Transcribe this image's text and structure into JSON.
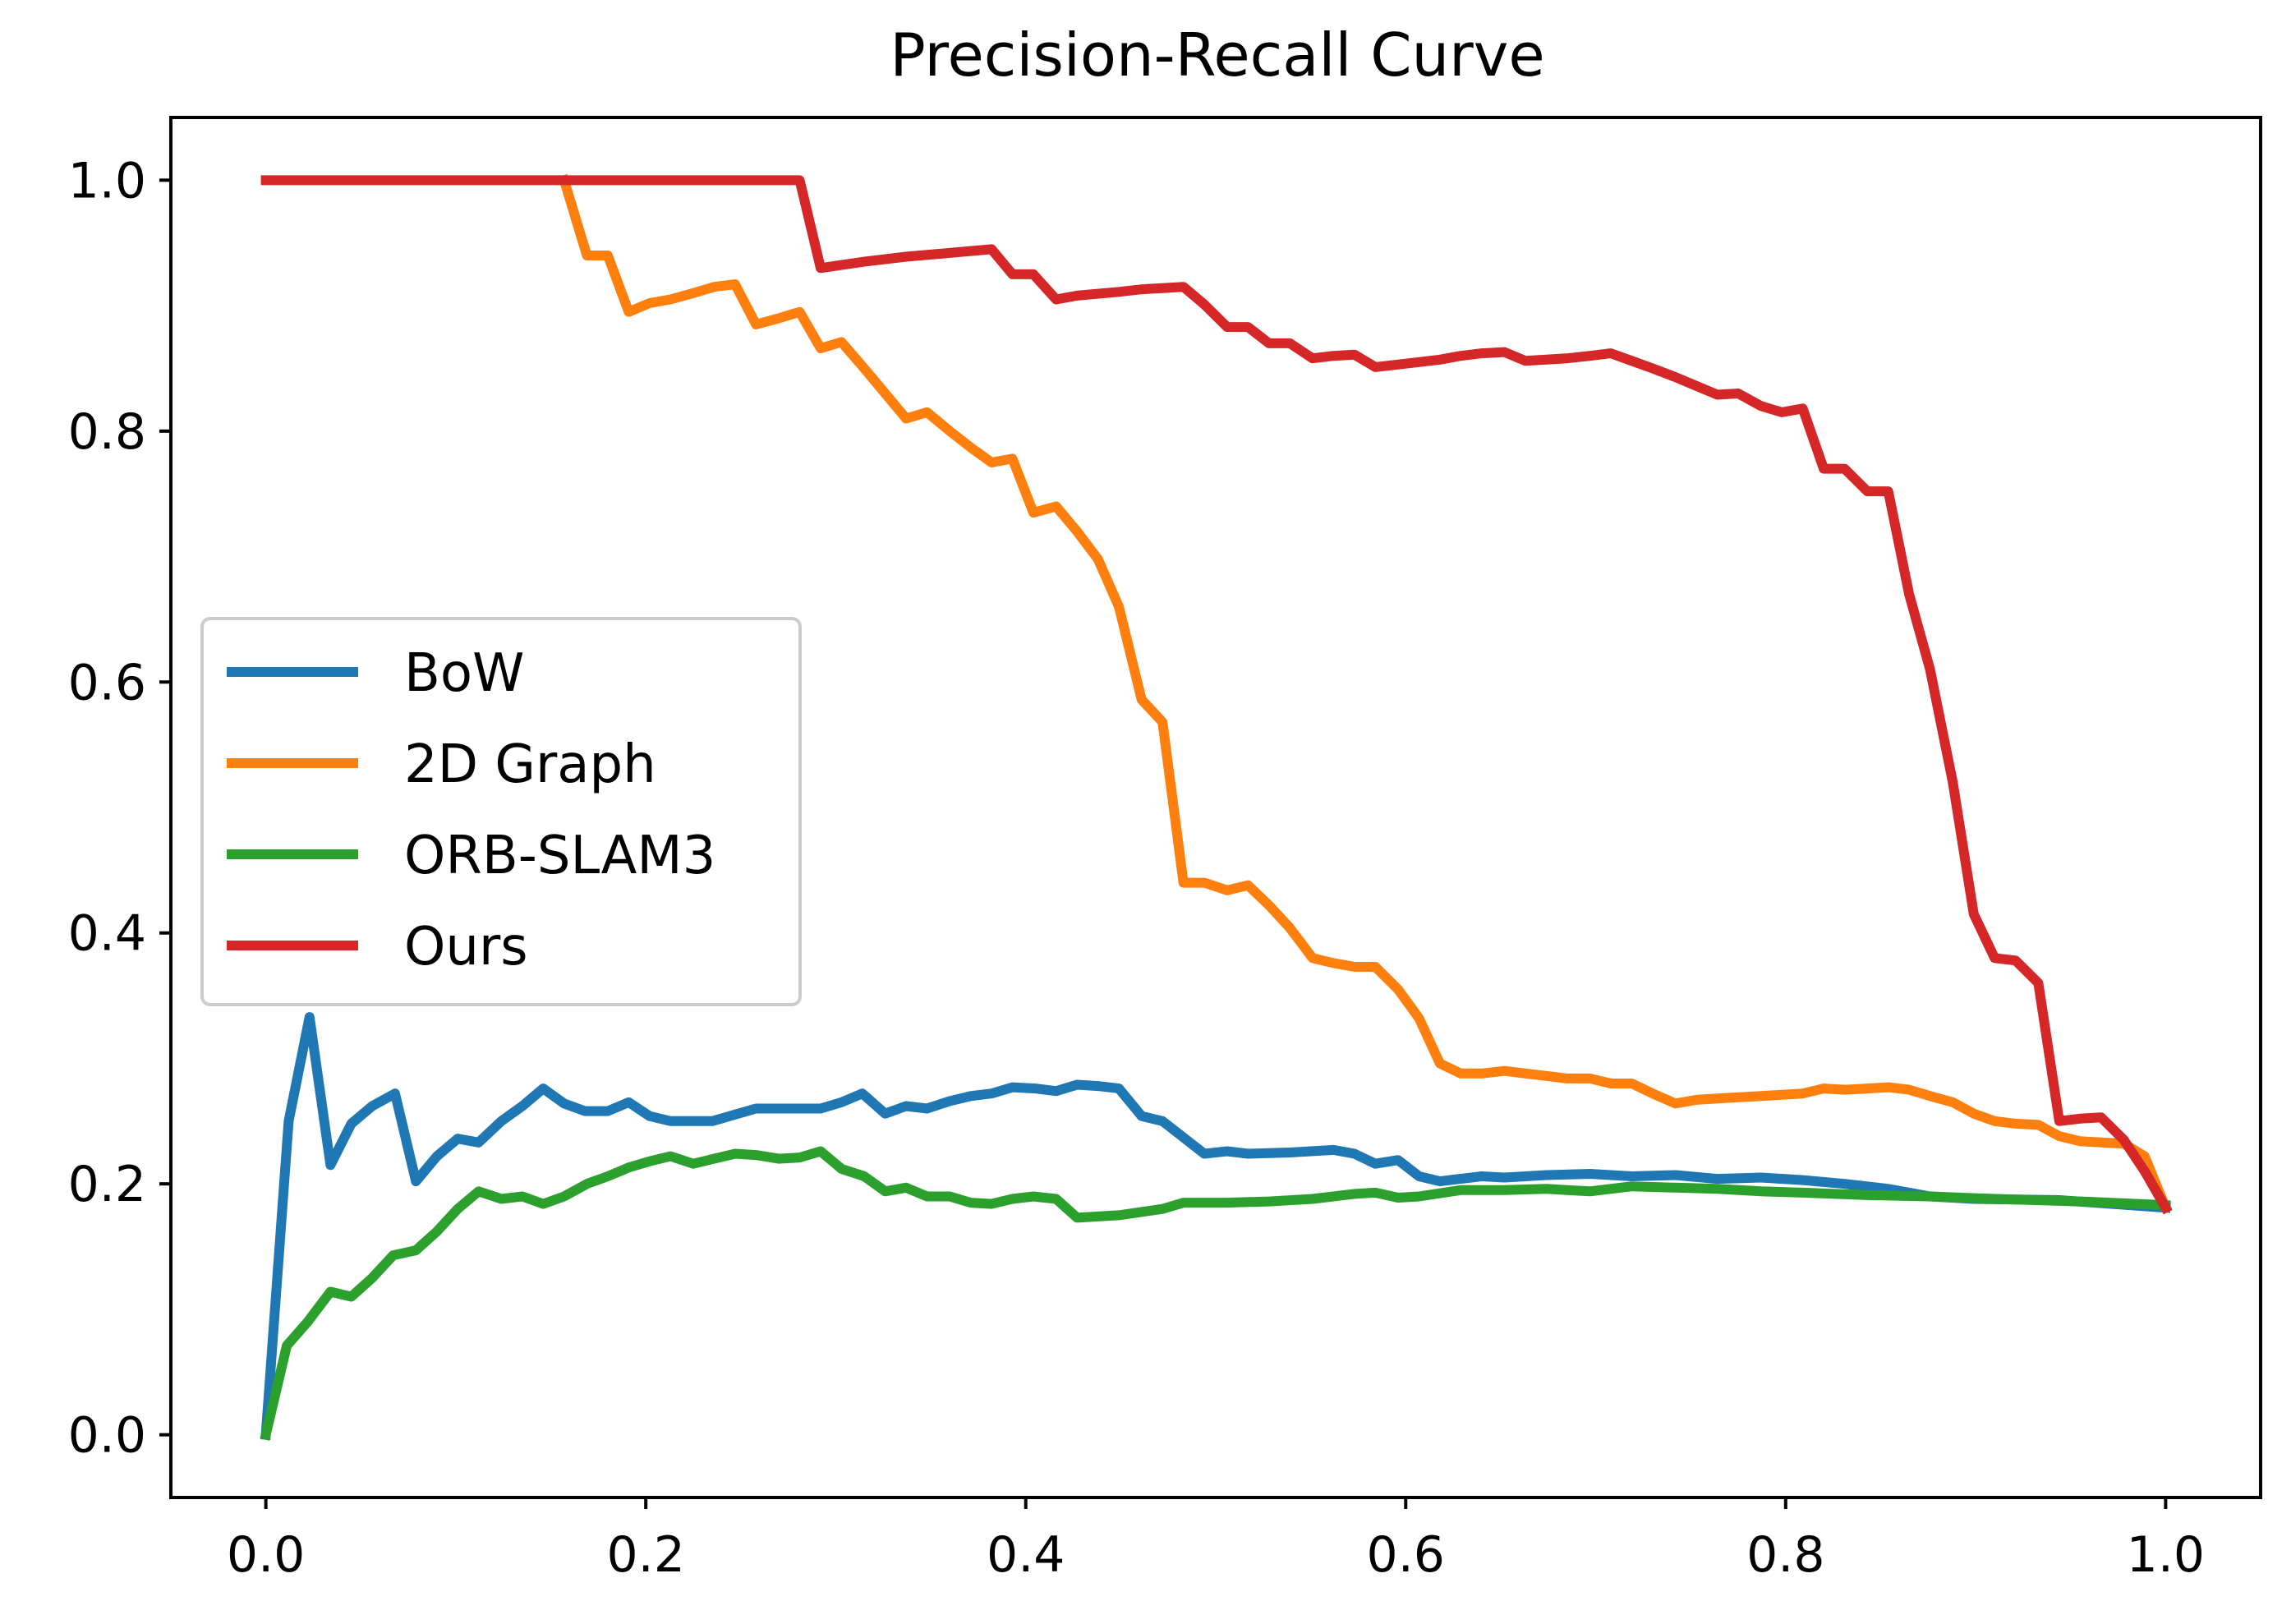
{
  "chart_data": {
    "type": "line",
    "title": "Precision-Recall Curve",
    "xlabel": "",
    "ylabel": "",
    "xlim": [
      -0.05,
      1.05
    ],
    "ylim": [
      -0.05,
      1.05
    ],
    "xticks": [
      "0.0",
      "0.2",
      "0.4",
      "0.6",
      "0.8",
      "1.0"
    ],
    "yticks": [
      "0.0",
      "0.2",
      "0.4",
      "0.6",
      "0.8",
      "1.0"
    ],
    "xtick_values": [
      0.0,
      0.2,
      0.4,
      0.6,
      0.8,
      1.0
    ],
    "ytick_values": [
      0.0,
      0.2,
      0.4,
      0.6,
      0.8,
      1.0
    ],
    "grid": false,
    "legend_position": "center-left",
    "series": [
      {
        "name": "BoW",
        "color": "#1f77b4",
        "points": [
          [
            0.0,
            0.0
          ],
          [
            0.012,
            0.25
          ],
          [
            0.023,
            0.333
          ],
          [
            0.034,
            0.215
          ],
          [
            0.045,
            0.248
          ],
          [
            0.056,
            0.262
          ],
          [
            0.068,
            0.272
          ],
          [
            0.079,
            0.202
          ],
          [
            0.09,
            0.222
          ],
          [
            0.101,
            0.236
          ],
          [
            0.112,
            0.233
          ],
          [
            0.124,
            0.25
          ],
          [
            0.135,
            0.262
          ],
          [
            0.146,
            0.276
          ],
          [
            0.157,
            0.264
          ],
          [
            0.168,
            0.258
          ],
          [
            0.18,
            0.258
          ],
          [
            0.191,
            0.265
          ],
          [
            0.202,
            0.254
          ],
          [
            0.213,
            0.25
          ],
          [
            0.235,
            0.25
          ],
          [
            0.258,
            0.26
          ],
          [
            0.281,
            0.26
          ],
          [
            0.292,
            0.26
          ],
          [
            0.303,
            0.265
          ],
          [
            0.314,
            0.272
          ],
          [
            0.326,
            0.256
          ],
          [
            0.337,
            0.262
          ],
          [
            0.348,
            0.26
          ],
          [
            0.36,
            0.266
          ],
          [
            0.371,
            0.27
          ],
          [
            0.382,
            0.272
          ],
          [
            0.393,
            0.277
          ],
          [
            0.405,
            0.276
          ],
          [
            0.416,
            0.274
          ],
          [
            0.427,
            0.279
          ],
          [
            0.438,
            0.278
          ],
          [
            0.449,
            0.276
          ],
          [
            0.461,
            0.254
          ],
          [
            0.472,
            0.25
          ],
          [
            0.483,
            0.237
          ],
          [
            0.494,
            0.224
          ],
          [
            0.506,
            0.226
          ],
          [
            0.517,
            0.224
          ],
          [
            0.539,
            0.225
          ],
          [
            0.562,
            0.227
          ],
          [
            0.573,
            0.224
          ],
          [
            0.584,
            0.216
          ],
          [
            0.596,
            0.219
          ],
          [
            0.607,
            0.206
          ],
          [
            0.618,
            0.202
          ],
          [
            0.64,
            0.206
          ],
          [
            0.652,
            0.205
          ],
          [
            0.674,
            0.207
          ],
          [
            0.697,
            0.208
          ],
          [
            0.719,
            0.206
          ],
          [
            0.742,
            0.207
          ],
          [
            0.764,
            0.204
          ],
          [
            0.787,
            0.205
          ],
          [
            0.809,
            0.203
          ],
          [
            0.831,
            0.2
          ],
          [
            0.854,
            0.196
          ],
          [
            0.876,
            0.19
          ],
          [
            0.899,
            0.188
          ],
          [
            0.944,
            0.187
          ],
          [
            1.0,
            0.181
          ]
        ]
      },
      {
        "name": "2D Graph",
        "color": "#ff7f0e",
        "points": [
          [
            0.157,
            1.0
          ],
          [
            0.169,
            0.94
          ],
          [
            0.18,
            0.94
          ],
          [
            0.191,
            0.895
          ],
          [
            0.202,
            0.902
          ],
          [
            0.213,
            0.905
          ],
          [
            0.225,
            0.91
          ],
          [
            0.236,
            0.915
          ],
          [
            0.247,
            0.917
          ],
          [
            0.258,
            0.885
          ],
          [
            0.27,
            0.89
          ],
          [
            0.281,
            0.895
          ],
          [
            0.292,
            0.866
          ],
          [
            0.303,
            0.871
          ],
          [
            0.315,
            0.85
          ],
          [
            0.326,
            0.83
          ],
          [
            0.337,
            0.81
          ],
          [
            0.348,
            0.815
          ],
          [
            0.36,
            0.8
          ],
          [
            0.371,
            0.787
          ],
          [
            0.382,
            0.775
          ],
          [
            0.393,
            0.778
          ],
          [
            0.404,
            0.735
          ],
          [
            0.416,
            0.74
          ],
          [
            0.427,
            0.72
          ],
          [
            0.438,
            0.698
          ],
          [
            0.449,
            0.66
          ],
          [
            0.461,
            0.586
          ],
          [
            0.472,
            0.568
          ],
          [
            0.483,
            0.44
          ],
          [
            0.494,
            0.44
          ],
          [
            0.506,
            0.434
          ],
          [
            0.517,
            0.438
          ],
          [
            0.528,
            0.422
          ],
          [
            0.539,
            0.404
          ],
          [
            0.551,
            0.38
          ],
          [
            0.562,
            0.376
          ],
          [
            0.573,
            0.373
          ],
          [
            0.584,
            0.373
          ],
          [
            0.596,
            0.355
          ],
          [
            0.607,
            0.332
          ],
          [
            0.618,
            0.296
          ],
          [
            0.629,
            0.288
          ],
          [
            0.64,
            0.288
          ],
          [
            0.652,
            0.29
          ],
          [
            0.663,
            0.288
          ],
          [
            0.674,
            0.286
          ],
          [
            0.685,
            0.284
          ],
          [
            0.697,
            0.284
          ],
          [
            0.708,
            0.28
          ],
          [
            0.719,
            0.28
          ],
          [
            0.73,
            0.272
          ],
          [
            0.742,
            0.264
          ],
          [
            0.753,
            0.267
          ],
          [
            0.764,
            0.268
          ],
          [
            0.787,
            0.27
          ],
          [
            0.809,
            0.272
          ],
          [
            0.82,
            0.276
          ],
          [
            0.831,
            0.275
          ],
          [
            0.843,
            0.276
          ],
          [
            0.854,
            0.277
          ],
          [
            0.865,
            0.275
          ],
          [
            0.876,
            0.27
          ],
          [
            0.888,
            0.265
          ],
          [
            0.899,
            0.256
          ],
          [
            0.91,
            0.25
          ],
          [
            0.921,
            0.248
          ],
          [
            0.933,
            0.247
          ],
          [
            0.944,
            0.238
          ],
          [
            0.955,
            0.234
          ],
          [
            0.978,
            0.232
          ],
          [
            0.989,
            0.222
          ],
          [
            1.0,
            0.181
          ]
        ]
      },
      {
        "name": "ORB-SLAM3",
        "color": "#2ca02c",
        "points": [
          [
            0.0,
            0.0
          ],
          [
            0.011,
            0.071
          ],
          [
            0.022,
            0.09
          ],
          [
            0.034,
            0.114
          ],
          [
            0.045,
            0.11
          ],
          [
            0.056,
            0.125
          ],
          [
            0.067,
            0.143
          ],
          [
            0.079,
            0.147
          ],
          [
            0.09,
            0.162
          ],
          [
            0.101,
            0.18
          ],
          [
            0.112,
            0.194
          ],
          [
            0.124,
            0.188
          ],
          [
            0.135,
            0.19
          ],
          [
            0.146,
            0.184
          ],
          [
            0.157,
            0.19
          ],
          [
            0.169,
            0.2
          ],
          [
            0.18,
            0.206
          ],
          [
            0.191,
            0.213
          ],
          [
            0.202,
            0.218
          ],
          [
            0.213,
            0.222
          ],
          [
            0.225,
            0.216
          ],
          [
            0.236,
            0.22
          ],
          [
            0.247,
            0.224
          ],
          [
            0.258,
            0.223
          ],
          [
            0.27,
            0.22
          ],
          [
            0.281,
            0.221
          ],
          [
            0.292,
            0.226
          ],
          [
            0.303,
            0.212
          ],
          [
            0.315,
            0.206
          ],
          [
            0.326,
            0.194
          ],
          [
            0.337,
            0.197
          ],
          [
            0.348,
            0.19
          ],
          [
            0.36,
            0.19
          ],
          [
            0.371,
            0.185
          ],
          [
            0.382,
            0.184
          ],
          [
            0.393,
            0.188
          ],
          [
            0.404,
            0.19
          ],
          [
            0.416,
            0.188
          ],
          [
            0.427,
            0.173
          ],
          [
            0.449,
            0.175
          ],
          [
            0.472,
            0.18
          ],
          [
            0.483,
            0.185
          ],
          [
            0.506,
            0.185
          ],
          [
            0.528,
            0.186
          ],
          [
            0.551,
            0.188
          ],
          [
            0.573,
            0.192
          ],
          [
            0.584,
            0.193
          ],
          [
            0.596,
            0.189
          ],
          [
            0.607,
            0.19
          ],
          [
            0.629,
            0.195
          ],
          [
            0.652,
            0.195
          ],
          [
            0.674,
            0.196
          ],
          [
            0.697,
            0.194
          ],
          [
            0.719,
            0.198
          ],
          [
            0.742,
            0.197
          ],
          [
            0.764,
            0.196
          ],
          [
            0.787,
            0.194
          ],
          [
            0.809,
            0.193
          ],
          [
            0.843,
            0.191
          ],
          [
            0.876,
            0.19
          ],
          [
            0.91,
            0.188
          ],
          [
            0.955,
            0.186
          ],
          [
            1.0,
            0.183
          ]
        ]
      },
      {
        "name": "Ours",
        "color": "#d62728",
        "points": [
          [
            0.0,
            1.0
          ],
          [
            0.281,
            1.0
          ],
          [
            0.292,
            0.93
          ],
          [
            0.315,
            0.935
          ],
          [
            0.337,
            0.939
          ],
          [
            0.36,
            0.942
          ],
          [
            0.382,
            0.945
          ],
          [
            0.393,
            0.925
          ],
          [
            0.404,
            0.925
          ],
          [
            0.416,
            0.905
          ],
          [
            0.427,
            0.908
          ],
          [
            0.449,
            0.911
          ],
          [
            0.461,
            0.913
          ],
          [
            0.472,
            0.914
          ],
          [
            0.483,
            0.915
          ],
          [
            0.494,
            0.901
          ],
          [
            0.506,
            0.883
          ],
          [
            0.517,
            0.883
          ],
          [
            0.528,
            0.87
          ],
          [
            0.539,
            0.87
          ],
          [
            0.551,
            0.858
          ],
          [
            0.562,
            0.86
          ],
          [
            0.573,
            0.861
          ],
          [
            0.584,
            0.851
          ],
          [
            0.607,
            0.855
          ],
          [
            0.618,
            0.857
          ],
          [
            0.629,
            0.86
          ],
          [
            0.64,
            0.862
          ],
          [
            0.652,
            0.863
          ],
          [
            0.663,
            0.856
          ],
          [
            0.674,
            0.857
          ],
          [
            0.685,
            0.858
          ],
          [
            0.697,
            0.86
          ],
          [
            0.708,
            0.862
          ],
          [
            0.719,
            0.856
          ],
          [
            0.73,
            0.85
          ],
          [
            0.742,
            0.843
          ],
          [
            0.753,
            0.836
          ],
          [
            0.764,
            0.829
          ],
          [
            0.775,
            0.83
          ],
          [
            0.787,
            0.82
          ],
          [
            0.798,
            0.815
          ],
          [
            0.809,
            0.818
          ],
          [
            0.82,
            0.77
          ],
          [
            0.831,
            0.77
          ],
          [
            0.843,
            0.752
          ],
          [
            0.854,
            0.752
          ],
          [
            0.865,
            0.67
          ],
          [
            0.876,
            0.61
          ],
          [
            0.888,
            0.52
          ],
          [
            0.899,
            0.415
          ],
          [
            0.91,
            0.38
          ],
          [
            0.921,
            0.378
          ],
          [
            0.933,
            0.36
          ],
          [
            0.944,
            0.25
          ],
          [
            0.955,
            0.252
          ],
          [
            0.966,
            0.253
          ],
          [
            0.978,
            0.235
          ],
          [
            0.989,
            0.21
          ],
          [
            1.0,
            0.181
          ]
        ]
      }
    ]
  }
}
